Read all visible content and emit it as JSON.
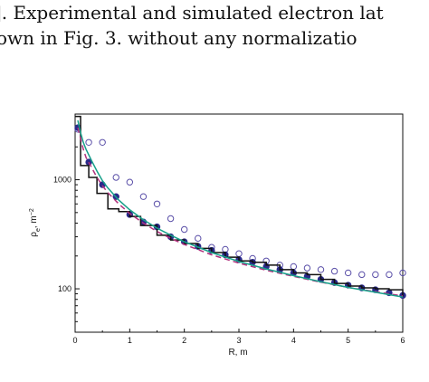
{
  "text": {
    "line1": "]. Experimental and simulated electron lat",
    "line2": "own in Fig.  3.  without any normalizatio"
  },
  "chart_data": {
    "type": "scatter",
    "xlabel": "R, m",
    "ylabel_main": "ρ",
    "ylabel_sub": "e",
    "ylabel_rest": ", m",
    "ylabel_sup": "−2",
    "x_ticks": [
      "0",
      "1",
      "2",
      "3",
      "4",
      "5",
      "6"
    ],
    "y_ticks": [
      "100",
      "1000"
    ],
    "xlim": [
      0,
      6
    ],
    "ylim": [
      40,
      4000
    ],
    "ylog": true,
    "series": [
      {
        "style": "open-circle",
        "color": "#5a4fa8",
        "x": [
          0.05,
          0.25,
          0.5,
          0.75,
          1.0,
          1.25,
          1.5,
          1.75,
          2.0,
          2.25,
          2.5,
          2.75,
          3.0,
          3.25,
          3.5,
          3.75,
          4.0,
          4.25,
          4.5,
          4.75,
          5.0,
          5.25,
          5.5,
          5.75,
          6.0
        ],
        "y": [
          2900,
          2200,
          2200,
          1050,
          950,
          700,
          600,
          440,
          350,
          290,
          240,
          230,
          210,
          190,
          180,
          165,
          160,
          155,
          150,
          145,
          140,
          135,
          135,
          135,
          140
        ]
      },
      {
        "style": "filled-circle",
        "color": "#2a2a8a",
        "x": [
          0.05,
          0.25,
          0.5,
          0.75,
          1.0,
          1.25,
          1.5,
          1.75,
          2.0,
          2.25,
          2.5,
          2.75,
          3.0,
          3.25,
          3.5,
          3.75,
          4.0,
          4.25,
          4.5,
          4.75,
          5.0,
          5.25,
          5.5,
          5.75,
          6.0
        ],
        "y": [
          3000,
          1450,
          900,
          700,
          480,
          410,
          370,
          300,
          270,
          245,
          225,
          205,
          185,
          175,
          160,
          150,
          140,
          130,
          122,
          114,
          108,
          102,
          98,
          92,
          87
        ]
      },
      {
        "style": "step",
        "color": "#111111",
        "x": [
          0,
          0.1,
          0.25,
          0.4,
          0.6,
          0.8,
          1.0,
          1.2,
          1.5,
          1.75,
          2.0,
          2.25,
          2.5,
          2.75,
          3.0,
          3.25,
          3.5,
          3.75,
          4.0,
          4.25,
          4.5,
          4.75,
          5.0,
          5.25,
          5.5,
          5.75,
          6.0
        ],
        "y": [
          3800,
          1350,
          1050,
          750,
          540,
          510,
          460,
          380,
          310,
          280,
          260,
          235,
          215,
          195,
          180,
          175,
          165,
          150,
          140,
          135,
          122,
          112,
          106,
          102,
          100,
          98,
          85
        ]
      },
      {
        "style": "dashed",
        "color": "#b0307c",
        "x": [
          0.05,
          0.1,
          0.15,
          0.2,
          0.3,
          0.4,
          0.5,
          0.6,
          0.8,
          1.0,
          1.25,
          1.5,
          1.75,
          2.0,
          2.5,
          3.0,
          3.5,
          4.0,
          4.5,
          5.0,
          5.5,
          6.0
        ],
        "y": [
          3000,
          2400,
          1900,
          1600,
          1300,
          1050,
          880,
          760,
          600,
          490,
          400,
          335,
          290,
          255,
          205,
          172,
          148,
          130,
          115,
          103,
          94,
          86
        ]
      },
      {
        "style": "solid",
        "color": "#17a08a",
        "x": [
          0.05,
          0.1,
          0.15,
          0.2,
          0.3,
          0.4,
          0.5,
          0.6,
          0.8,
          1.0,
          1.25,
          1.5,
          1.75,
          2.0,
          2.5,
          3.0,
          3.5,
          4.0,
          4.5,
          5.0,
          5.5,
          6.0
        ],
        "y": [
          3500,
          2700,
          2200,
          1900,
          1500,
          1200,
          980,
          840,
          650,
          530,
          430,
          360,
          310,
          270,
          215,
          178,
          152,
          132,
          116,
          103,
          93,
          84
        ]
      }
    ]
  }
}
